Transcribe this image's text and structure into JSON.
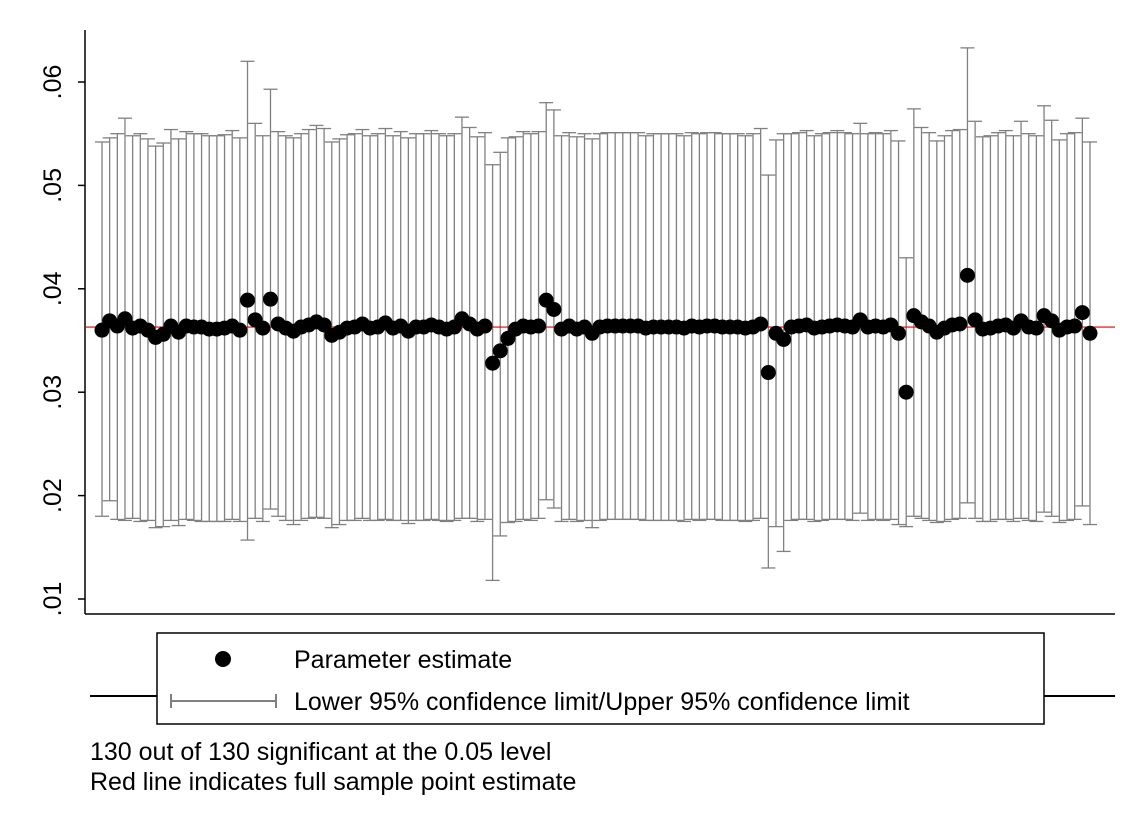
{
  "chart_data": {
    "type": "scatter",
    "title": "",
    "xlabel": "",
    "ylabel": "",
    "ylim": [
      0.01,
      0.065
    ],
    "yticks": [
      0.01,
      0.02,
      0.03,
      0.04,
      0.05,
      0.06
    ],
    "ytick_labels": [
      ".01",
      ".02",
      ".03",
      ".04",
      ".05",
      ".06"
    ],
    "reference_line": {
      "value": 0.0363,
      "color": "#e00000"
    },
    "marker_color": "#000000",
    "ci_color": "#808080",
    "series": [
      {
        "name": "Parameter estimate",
        "x": [
          1,
          2,
          3,
          4,
          5,
          6,
          7,
          8,
          9,
          10,
          11,
          12,
          13,
          14,
          15,
          16,
          17,
          18,
          19,
          20,
          21,
          22,
          23,
          24,
          25,
          26,
          27,
          28,
          29,
          30,
          31,
          32,
          33,
          34,
          35,
          36,
          37,
          38,
          39,
          40,
          41,
          42,
          43,
          44,
          45,
          46,
          47,
          48,
          49,
          50,
          51,
          52,
          53,
          54,
          55,
          56,
          57,
          58,
          59,
          60,
          61,
          62,
          63,
          64,
          65,
          66,
          67,
          68,
          69,
          70,
          71,
          72,
          73,
          74,
          75,
          76,
          77,
          78,
          79,
          80,
          81,
          82,
          83,
          84,
          85,
          86,
          87,
          88,
          89,
          90,
          91,
          92,
          93,
          94,
          95,
          96,
          97,
          98,
          99,
          100,
          101,
          102,
          103,
          104,
          105,
          106,
          107,
          108,
          109,
          110,
          111,
          112,
          113,
          114,
          115,
          116,
          117,
          118,
          119,
          120,
          121,
          122,
          123,
          124,
          125,
          126,
          127,
          128,
          129,
          130
        ],
        "y": [
          0.036,
          0.0369,
          0.0364,
          0.0371,
          0.0362,
          0.0364,
          0.036,
          0.0353,
          0.0356,
          0.0364,
          0.0358,
          0.0364,
          0.0363,
          0.0363,
          0.0361,
          0.0361,
          0.0362,
          0.0364,
          0.036,
          0.0389,
          0.037,
          0.0362,
          0.039,
          0.0366,
          0.0362,
          0.0359,
          0.0363,
          0.0365,
          0.0368,
          0.0365,
          0.0355,
          0.0358,
          0.0362,
          0.0363,
          0.0366,
          0.0362,
          0.0363,
          0.0367,
          0.0362,
          0.0364,
          0.0359,
          0.0363,
          0.0363,
          0.0365,
          0.0363,
          0.0361,
          0.0363,
          0.0371,
          0.0366,
          0.0361,
          0.0364,
          0.0328,
          0.034,
          0.0352,
          0.0361,
          0.0364,
          0.0363,
          0.0364,
          0.0389,
          0.038,
          0.0361,
          0.0364,
          0.0361,
          0.0363,
          0.0357,
          0.0363,
          0.0364,
          0.0364,
          0.0364,
          0.0364,
          0.0364,
          0.0362,
          0.0363,
          0.0363,
          0.0363,
          0.0363,
          0.0362,
          0.0364,
          0.0363,
          0.0364,
          0.0364,
          0.0363,
          0.0363,
          0.0363,
          0.0362,
          0.0363,
          0.0366,
          0.0319,
          0.0357,
          0.0351,
          0.0363,
          0.0364,
          0.0365,
          0.0362,
          0.0363,
          0.0364,
          0.0365,
          0.0364,
          0.0363,
          0.037,
          0.0363,
          0.0364,
          0.0363,
          0.0365,
          0.0357,
          0.03,
          0.0374,
          0.0368,
          0.0364,
          0.0358,
          0.0362,
          0.0365,
          0.0366,
          0.0413,
          0.037,
          0.0361,
          0.0362,
          0.0364,
          0.0365,
          0.0362,
          0.0369,
          0.0363,
          0.0362,
          0.0374,
          0.0369,
          0.036,
          0.0363,
          0.0364,
          0.0377,
          0.0357
        ]
      },
      {
        "name": "Lower 95% confidence limit/Upper 95% confidence limit",
        "x": [
          1,
          2,
          3,
          4,
          5,
          6,
          7,
          8,
          9,
          10,
          11,
          12,
          13,
          14,
          15,
          16,
          17,
          18,
          19,
          20,
          21,
          22,
          23,
          24,
          25,
          26,
          27,
          28,
          29,
          30,
          31,
          32,
          33,
          34,
          35,
          36,
          37,
          38,
          39,
          40,
          41,
          42,
          43,
          44,
          45,
          46,
          47,
          48,
          49,
          50,
          51,
          52,
          53,
          54,
          55,
          56,
          57,
          58,
          59,
          60,
          61,
          62,
          63,
          64,
          65,
          66,
          67,
          68,
          69,
          70,
          71,
          72,
          73,
          74,
          75,
          76,
          77,
          78,
          79,
          80,
          81,
          82,
          83,
          84,
          85,
          86,
          87,
          88,
          89,
          90,
          91,
          92,
          93,
          94,
          95,
          96,
          97,
          98,
          99,
          100,
          101,
          102,
          103,
          104,
          105,
          106,
          107,
          108,
          109,
          110,
          111,
          112,
          113,
          114,
          115,
          116,
          117,
          118,
          119,
          120,
          121,
          122,
          123,
          124,
          125,
          126,
          127,
          128,
          129,
          130
        ],
        "lower": [
          0.018,
          0.0195,
          0.0177,
          0.0176,
          0.0178,
          0.0175,
          0.0176,
          0.0169,
          0.017,
          0.0176,
          0.0171,
          0.0177,
          0.0176,
          0.0175,
          0.0175,
          0.0175,
          0.0175,
          0.0177,
          0.0175,
          0.0157,
          0.0178,
          0.0175,
          0.0187,
          0.018,
          0.0176,
          0.0172,
          0.0176,
          0.0178,
          0.0179,
          0.0178,
          0.0169,
          0.0172,
          0.0176,
          0.0176,
          0.0178,
          0.0176,
          0.0176,
          0.0177,
          0.0176,
          0.0176,
          0.0173,
          0.0176,
          0.0176,
          0.0177,
          0.0176,
          0.0175,
          0.0176,
          0.0178,
          0.0178,
          0.0175,
          0.0177,
          0.0118,
          0.0161,
          0.0174,
          0.0175,
          0.0177,
          0.0176,
          0.0178,
          0.0196,
          0.0188,
          0.0175,
          0.0177,
          0.0175,
          0.0176,
          0.0169,
          0.0176,
          0.0177,
          0.0177,
          0.0177,
          0.0177,
          0.0177,
          0.0176,
          0.0176,
          0.0176,
          0.0176,
          0.0176,
          0.0175,
          0.0177,
          0.0176,
          0.0177,
          0.0177,
          0.0176,
          0.0176,
          0.0176,
          0.0175,
          0.0176,
          0.0178,
          0.013,
          0.017,
          0.0146,
          0.0176,
          0.0177,
          0.0177,
          0.0175,
          0.0176,
          0.0177,
          0.0177,
          0.0177,
          0.0176,
          0.0183,
          0.0176,
          0.0177,
          0.0176,
          0.0177,
          0.0172,
          0.017,
          0.018,
          0.0178,
          0.0176,
          0.0174,
          0.0175,
          0.0177,
          0.0178,
          0.0193,
          0.0178,
          0.0175,
          0.0175,
          0.0177,
          0.0177,
          0.0175,
          0.0178,
          0.0176,
          0.0175,
          0.0184,
          0.018,
          0.0174,
          0.0176,
          0.0177,
          0.019,
          0.0172
        ],
        "upper": [
          0.0542,
          0.0546,
          0.055,
          0.0565,
          0.0548,
          0.055,
          0.0545,
          0.0538,
          0.0541,
          0.0554,
          0.0545,
          0.0552,
          0.055,
          0.055,
          0.0548,
          0.0548,
          0.0549,
          0.0553,
          0.0546,
          0.062,
          0.056,
          0.0548,
          0.0593,
          0.0552,
          0.0548,
          0.0546,
          0.055,
          0.0554,
          0.0558,
          0.0555,
          0.0542,
          0.0545,
          0.0549,
          0.055,
          0.0554,
          0.0548,
          0.055,
          0.0555,
          0.0548,
          0.0552,
          0.0546,
          0.055,
          0.055,
          0.0553,
          0.055,
          0.0548,
          0.055,
          0.0566,
          0.0556,
          0.0547,
          0.0551,
          0.052,
          0.0532,
          0.0546,
          0.0547,
          0.0552,
          0.055,
          0.0552,
          0.058,
          0.0573,
          0.0548,
          0.0551,
          0.0547,
          0.055,
          0.0545,
          0.055,
          0.0551,
          0.0551,
          0.0551,
          0.0551,
          0.0551,
          0.0548,
          0.055,
          0.055,
          0.055,
          0.055,
          0.0548,
          0.0551,
          0.055,
          0.0551,
          0.0551,
          0.055,
          0.055,
          0.055,
          0.0548,
          0.055,
          0.0555,
          0.051,
          0.0544,
          0.055,
          0.055,
          0.0551,
          0.0553,
          0.0548,
          0.055,
          0.0551,
          0.0553,
          0.0551,
          0.055,
          0.056,
          0.055,
          0.0551,
          0.055,
          0.0553,
          0.0543,
          0.043,
          0.0574,
          0.0556,
          0.0551,
          0.0543,
          0.0548,
          0.0553,
          0.0554,
          0.0633,
          0.0562,
          0.0547,
          0.0548,
          0.0551,
          0.0553,
          0.0548,
          0.0562,
          0.055,
          0.0548,
          0.0577,
          0.0563,
          0.0544,
          0.055,
          0.0551,
          0.0565,
          0.0542
        ]
      }
    ],
    "legend": {
      "position": "bottom",
      "entries": [
        "Parameter estimate",
        "Lower 95% confidence limit/Upper 95% confidence limit"
      ]
    },
    "notes": [
      "130 out of 130 significant at the 0.05 level",
      "Red line indicates full sample point estimate"
    ]
  }
}
